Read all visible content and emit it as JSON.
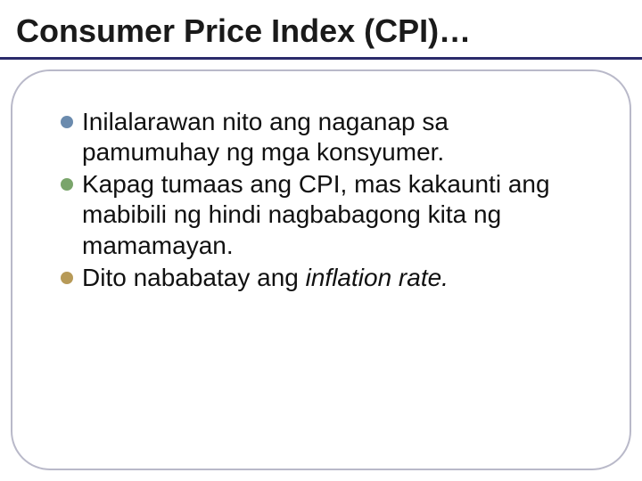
{
  "slide": {
    "title": "Consumer Price Index (CPI)…",
    "title_color": "#1a1a1a",
    "title_fontsize": 36,
    "title_fontweight": "bold",
    "rule_color": "#2b2b6b",
    "frame_border_color": "#b9b9c9",
    "frame_border_radius": 44,
    "background_color": "#ffffff",
    "bullets": [
      {
        "dot_color": "#6b8bae",
        "text_plain": "Inilalarawan nito ang naganap sa pamumuhay ng mga konsyumer.",
        "text_italic": ""
      },
      {
        "dot_color": "#7aa56b",
        "text_plain": "Kapag tumaas ang CPI, mas kakaunti ang mabibili ng hindi nagbabagong kita ng mamamayan.",
        "text_italic": ""
      },
      {
        "dot_color": "#b79a58",
        "text_plain": "Dito nababatay ang ",
        "text_italic": "inflation rate."
      }
    ],
    "bullet_fontsize": 28,
    "bullet_text_color": "#111111"
  }
}
